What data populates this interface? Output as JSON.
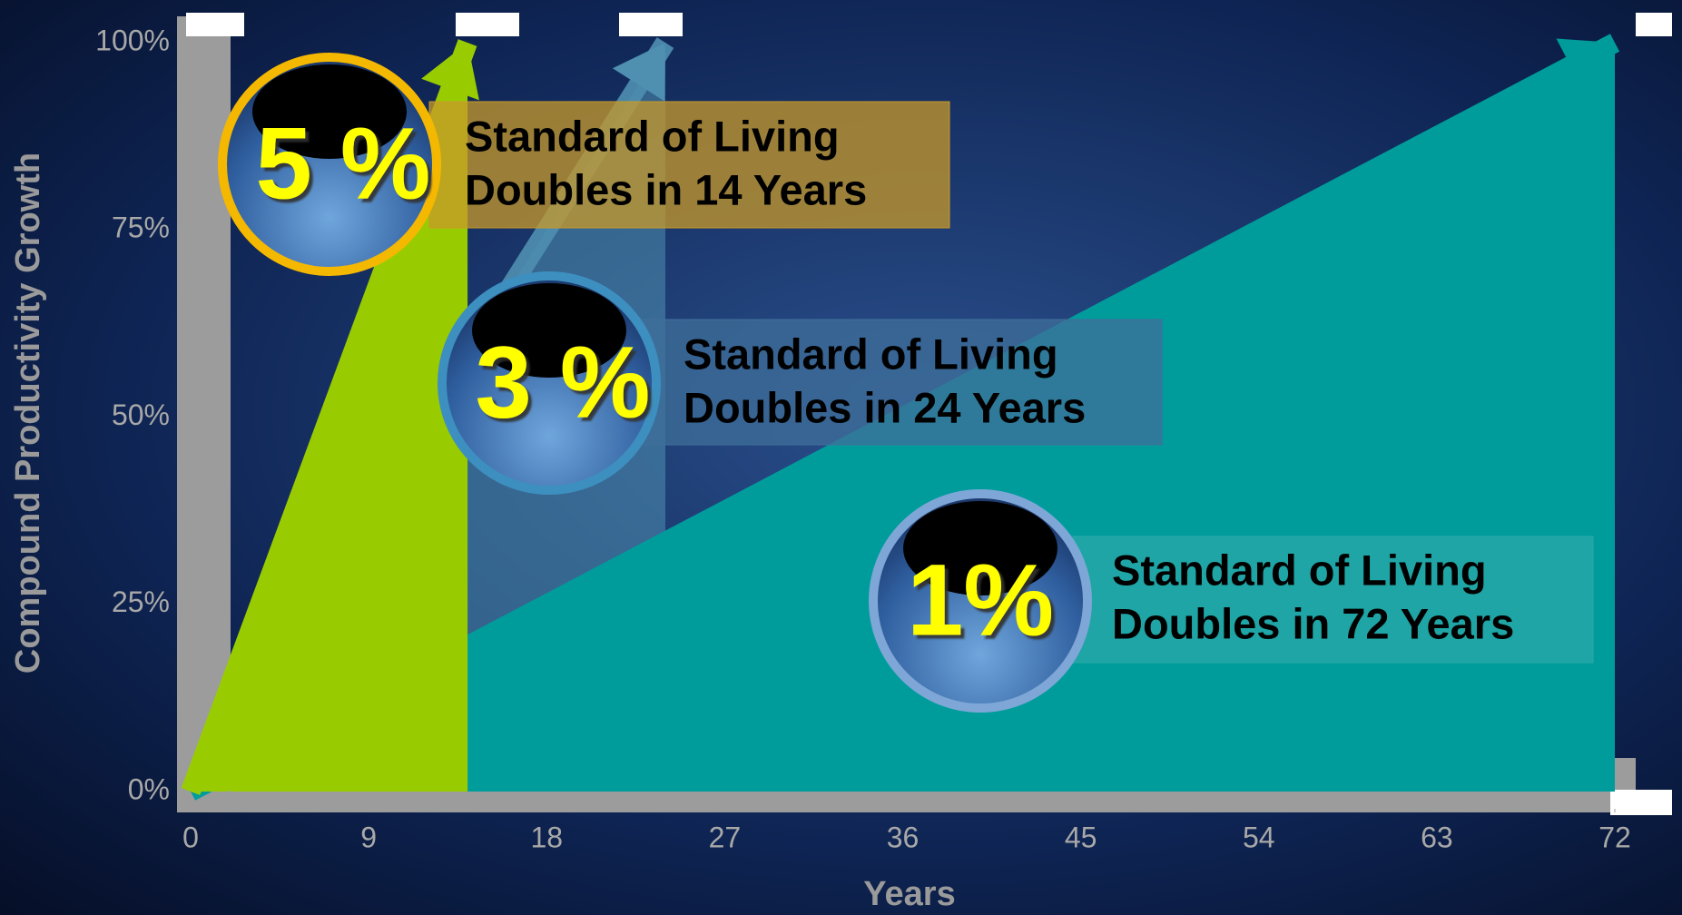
{
  "chart_data": {
    "type": "area",
    "ylabel": "Compound Productivity Growth",
    "xlabel": "Years",
    "xlim": [
      0,
      72
    ],
    "xticks": [
      0,
      9,
      18,
      27,
      36,
      45,
      54,
      63,
      72
    ],
    "ylim": [
      0,
      100
    ],
    "yticks": [
      {
        "value": 0,
        "label": "0%"
      },
      {
        "value": 25,
        "label": "25%"
      },
      {
        "value": 50,
        "label": "50%"
      },
      {
        "value": 75,
        "label": "75%"
      },
      {
        "value": 100,
        "label": "100%"
      }
    ],
    "series": [
      {
        "name": "5 %",
        "color": "#99cc00",
        "x": [
          0,
          14
        ],
        "values": [
          0,
          100
        ],
        "label_lines": [
          "Standard of Living",
          "Doubles in 14 Years"
        ]
      },
      {
        "name": "3 %",
        "color": "#4f8fb0",
        "x": [
          0,
          24
        ],
        "values": [
          0,
          100
        ],
        "label_lines": [
          "Standard of Living",
          "Doubles in 24 Years"
        ]
      },
      {
        "name": "1%",
        "color": "#009c9c",
        "x": [
          0,
          72
        ],
        "values": [
          0,
          100
        ],
        "label_lines": [
          "Standard of Living",
          "Doubles in 72 Years"
        ]
      }
    ]
  }
}
